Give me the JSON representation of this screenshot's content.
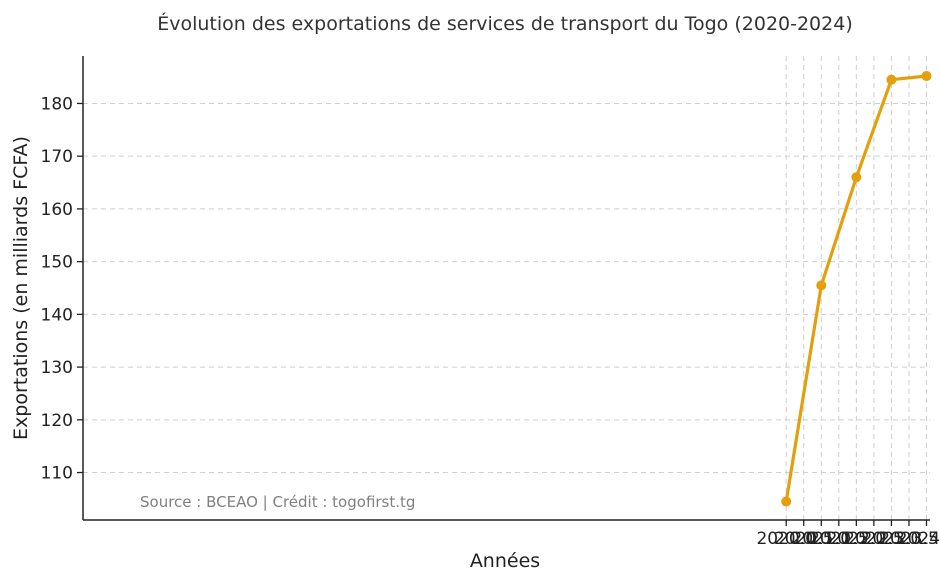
{
  "colors": {
    "series": "#e39f0c",
    "grid": "#cfcfcf",
    "text": "#222222",
    "source": "#808080"
  },
  "chart_data": {
    "type": "line",
    "title": "Évolution des exportations de services de transport du Togo (2020-2024)",
    "xlabel": "Années",
    "ylabel": "Exportations (en milliards FCFA)",
    "xlim": [
      1999.95,
      2024.1
    ],
    "ylim": [
      101.0,
      189.0
    ],
    "xticks": [
      2020.0,
      2020.5,
      2021.0,
      2021.5,
      2022.0,
      2022.5,
      2023.0,
      2023.5,
      2024.0
    ],
    "xtick_labels": [
      "2020.0",
      "2020.5",
      "2021.0",
      "2021.5",
      "2022.0",
      "2022.5",
      "2023.0",
      "2023.5",
      "2024.0"
    ],
    "yticks": [
      110,
      120,
      130,
      140,
      150,
      160,
      170,
      180
    ],
    "ytick_labels": [
      "110",
      "120",
      "130",
      "140",
      "150",
      "160",
      "170",
      "180"
    ],
    "grid": true,
    "series": [
      {
        "name": "Exportations",
        "x": [
          2020,
          2021,
          2022,
          2023,
          2024
        ],
        "values": [
          104.5,
          145.5,
          166.0,
          184.5,
          185.2
        ]
      }
    ],
    "annotation": "Source : BCEAO | Crédit : togofirst.tg"
  }
}
